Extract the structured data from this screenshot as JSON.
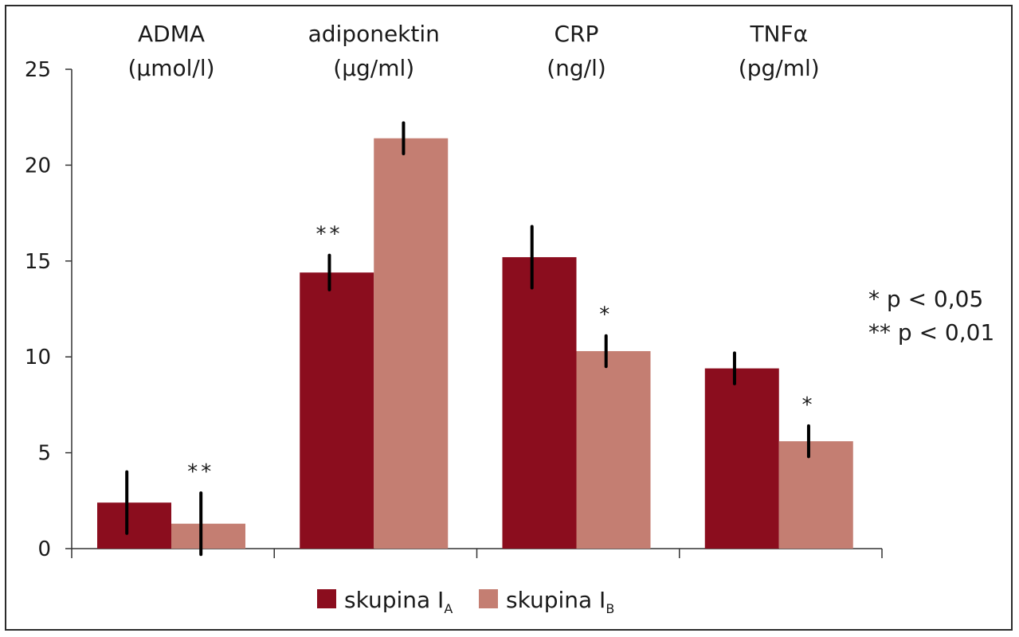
{
  "chart_data": {
    "type": "bar",
    "categories": [
      {
        "name": "ADMA",
        "unit": "(μmol/l)"
      },
      {
        "name": "adiponektin",
        "unit": "(μg/ml)"
      },
      {
        "name": "CRP",
        "unit": "(ng/l)"
      },
      {
        "name": "TNFα",
        "unit": "(pg/ml)"
      }
    ],
    "series": [
      {
        "name": "skupina I",
        "subscript": "A",
        "color": "#8b0d1e",
        "values": [
          2.4,
          14.4,
          15.2,
          9.4
        ],
        "errors": [
          1.6,
          0.9,
          1.6,
          0.8
        ],
        "sig": [
          "",
          "**",
          "",
          ""
        ]
      },
      {
        "name": "skupina I",
        "subscript": "B",
        "color": "#c47e72",
        "values": [
          1.3,
          21.4,
          10.3,
          5.6
        ],
        "errors": [
          1.6,
          0.8,
          0.8,
          0.8
        ],
        "sig": [
          "**",
          "",
          "*",
          "*"
        ]
      }
    ],
    "ylim": [
      0,
      25
    ],
    "yticks": [
      "0",
      "5",
      "10",
      "15",
      "20",
      "25"
    ],
    "grid": false,
    "legend_position": "bottom-center",
    "significance_note": [
      "* p < 0,05",
      "** p < 0,01"
    ]
  }
}
